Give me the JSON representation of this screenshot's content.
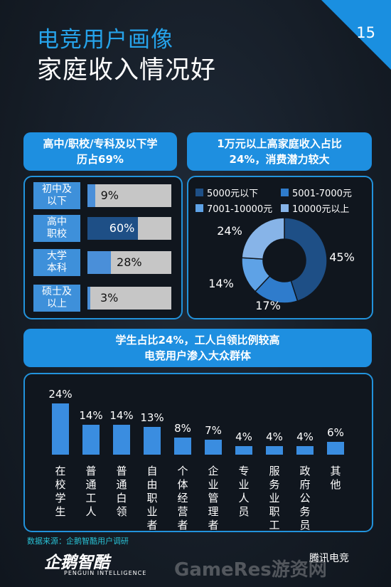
{
  "page_number": "15",
  "title_line1": "电竞用户画像",
  "title_line2": "家庭收入情况好",
  "education": {
    "header_line1": "高中/职校/专科及以下学",
    "header_line2": "历占69%",
    "rows": [
      {
        "label_line1": "初中及",
        "label_line2": "以下",
        "value": 9,
        "value_text": "9%",
        "bar_color": "#4a8fd9"
      },
      {
        "label_line1": "高中",
        "label_line2": "职校",
        "value": 60,
        "value_text": "60%",
        "bar_color": "#1e4f86"
      },
      {
        "label_line1": "大学",
        "label_line2": "本科",
        "value": 28,
        "value_text": "28%",
        "bar_color": "#4a8fd9"
      },
      {
        "label_line1": "硕士及",
        "label_line2": "以上",
        "value": 3,
        "value_text": "3%",
        "bar_color": "#4a8fd9"
      }
    ]
  },
  "income": {
    "header_line1": "1万元以上高家庭收入占比",
    "header_line2": "24%，消费潜力较大"
  },
  "occupation": {
    "header_line1": "学生占比24%，工人白领比例较高",
    "header_line2": "电竞用户渗入大众群体"
  },
  "chart_data": [
    {
      "type": "bar",
      "title": "高中/职校/专科及以下学历占69%",
      "categories": [
        "初中及以下",
        "高中职校",
        "大学本科",
        "硕士及以上"
      ],
      "values": [
        9,
        60,
        28,
        3
      ],
      "unit": "%",
      "ylim": [
        0,
        100
      ]
    },
    {
      "type": "pie",
      "variant": "donut",
      "title": "1万元以上高家庭收入占比24%，消费潜力较大",
      "categories": [
        "5000元以下",
        "5001-7000元",
        "7001-10000元",
        "10000元以上"
      ],
      "values": [
        45,
        17,
        14,
        24
      ],
      "labels": [
        "45%",
        "17%",
        "14%",
        "24%"
      ],
      "colors": [
        "#1e4f86",
        "#2f7ccc",
        "#5ea2e6",
        "#87b4e8"
      ],
      "legend": "top"
    },
    {
      "type": "bar",
      "title": "学生占比24%，工人白领比例较高 电竞用户渗入大众群体",
      "categories": [
        "在校学生",
        "普通工人",
        "普通白领",
        "自由职业者",
        "个体经营者",
        "企业管理者",
        "专业人员",
        "服务业职工",
        "政府公务员",
        "其他"
      ],
      "values": [
        24,
        14,
        14,
        13,
        8,
        7,
        4,
        4,
        4,
        6
      ],
      "labels": [
        "24%",
        "14%",
        "14%",
        "13%",
        "8%",
        "7%",
        "4%",
        "4%",
        "4%",
        "6%"
      ],
      "color": "#3a8de0",
      "ylim": [
        0,
        24
      ]
    }
  ],
  "source_text": "数据来源：企鹅智酷用户调研",
  "logo_text": "企鹅智酷",
  "logo_subtext": "PENGUIN INTELLIGENCE",
  "logo2_text": "腾讯电竞",
  "watermark_text": "GameRes游资网"
}
